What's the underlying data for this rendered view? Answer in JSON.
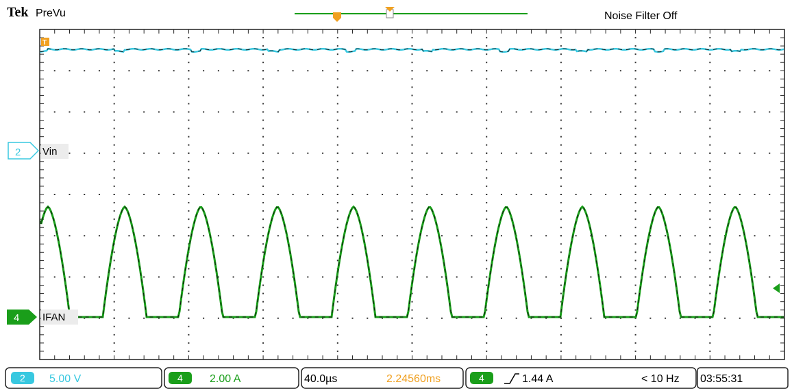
{
  "header": {
    "brand": "Tek",
    "mode": "PreVu",
    "noise_filter": "Noise Filter Off"
  },
  "channels": [
    {
      "number": "2",
      "label": "Vin",
      "scale": "5.00 V",
      "color": "#38c8e0"
    },
    {
      "number": "4",
      "label": "IFAN",
      "scale": "2.00 A",
      "color": "#1a9e1a"
    }
  ],
  "status_bar": {
    "timebase": "40.0µs",
    "trigger_position": "2.24560ms",
    "trigger_channel": "4",
    "trigger_slope_symbol": "↗",
    "trigger_level": "1.44 A",
    "frequency": "< 10 Hz",
    "time": "03:55:31"
  },
  "colors": {
    "ch2": "#38c8e0",
    "ch4": "#1a9e1a",
    "trigger": "#f0a020",
    "grid": "#222222"
  },
  "chart_data": {
    "type": "line",
    "grid": {
      "divisions_x": 10,
      "divisions_y": 8
    },
    "series": [
      {
        "name": "Vin",
        "description_points": "flat line near top with small periodic dips"
      },
      {
        "name": "IFAN",
        "pulse_count": 10
      }
    ]
  }
}
